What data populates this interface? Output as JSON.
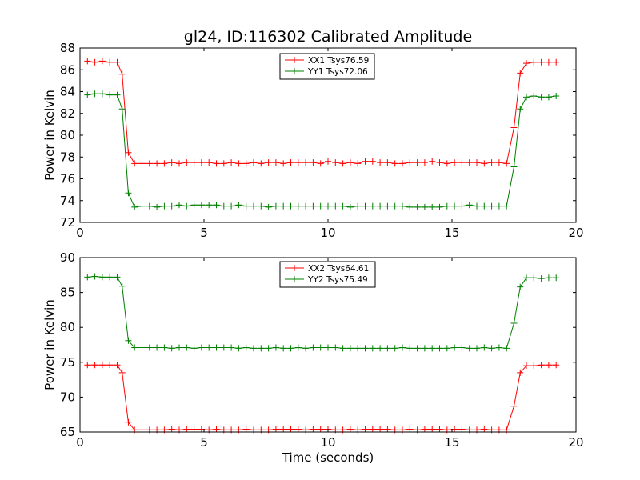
{
  "figure": {
    "title": "gl24, ID:116302 Calibrated Amplitude",
    "background": "#ffffff"
  },
  "chart_data": [
    {
      "type": "line",
      "title": "gl24, ID:116302 Calibrated Amplitude",
      "xlabel": "",
      "ylabel": "Power in Kelvin",
      "xlim": [
        0,
        20
      ],
      "ylim": [
        72,
        88
      ],
      "xticks": [
        0,
        5,
        10,
        15,
        20
      ],
      "yticks": [
        72,
        74,
        76,
        78,
        80,
        82,
        84,
        86,
        88
      ],
      "grid": false,
      "legend": "top-center",
      "x": [
        0.3,
        0.6,
        0.9,
        1.2,
        1.5,
        1.7,
        1.95,
        2.2,
        2.5,
        2.8,
        3.1,
        3.4,
        3.7,
        4.0,
        4.3,
        4.6,
        4.9,
        5.2,
        5.5,
        5.8,
        6.1,
        6.4,
        6.7,
        7.0,
        7.3,
        7.6,
        7.9,
        8.2,
        8.5,
        8.8,
        9.1,
        9.4,
        9.7,
        10.0,
        10.3,
        10.6,
        10.9,
        11.2,
        11.5,
        11.8,
        12.1,
        12.4,
        12.7,
        13.0,
        13.3,
        13.6,
        13.9,
        14.2,
        14.5,
        14.8,
        15.1,
        15.4,
        15.7,
        16.0,
        16.3,
        16.6,
        16.9,
        17.2,
        17.5,
        17.75,
        18.0,
        18.3,
        18.6,
        18.9,
        19.2
      ],
      "series": [
        {
          "name": "XX1 Tsys76.59",
          "color": "#ff0000",
          "values": [
            86.8,
            86.7,
            86.8,
            86.7,
            86.7,
            85.6,
            78.4,
            77.4,
            77.4,
            77.4,
            77.4,
            77.4,
            77.5,
            77.4,
            77.5,
            77.5,
            77.5,
            77.5,
            77.4,
            77.4,
            77.5,
            77.4,
            77.4,
            77.5,
            77.4,
            77.5,
            77.5,
            77.4,
            77.5,
            77.5,
            77.5,
            77.5,
            77.4,
            77.6,
            77.5,
            77.4,
            77.5,
            77.4,
            77.6,
            77.6,
            77.5,
            77.5,
            77.4,
            77.4,
            77.5,
            77.5,
            77.5,
            77.6,
            77.5,
            77.4,
            77.5,
            77.5,
            77.5,
            77.5,
            77.4,
            77.5,
            77.5,
            77.4,
            80.7,
            85.7,
            86.6,
            86.7,
            86.7,
            86.7,
            86.7
          ]
        },
        {
          "name": "YY1 Tsys72.06",
          "color": "#008000",
          "values": [
            83.7,
            83.8,
            83.8,
            83.7,
            83.7,
            82.4,
            74.7,
            73.4,
            73.5,
            73.5,
            73.4,
            73.5,
            73.5,
            73.6,
            73.5,
            73.6,
            73.6,
            73.6,
            73.6,
            73.5,
            73.5,
            73.6,
            73.5,
            73.5,
            73.5,
            73.4,
            73.5,
            73.5,
            73.5,
            73.5,
            73.5,
            73.5,
            73.5,
            73.5,
            73.5,
            73.5,
            73.4,
            73.5,
            73.5,
            73.5,
            73.5,
            73.5,
            73.5,
            73.5,
            73.4,
            73.4,
            73.4,
            73.4,
            73.4,
            73.5,
            73.5,
            73.5,
            73.6,
            73.5,
            73.5,
            73.5,
            73.5,
            73.5,
            77.1,
            82.4,
            83.5,
            83.6,
            83.5,
            83.5,
            83.6
          ]
        }
      ]
    },
    {
      "type": "line",
      "title": "",
      "xlabel": "Time (seconds)",
      "ylabel": "Power in Kelvin",
      "xlim": [
        0,
        20
      ],
      "ylim": [
        65,
        90
      ],
      "xticks": [
        0,
        5,
        10,
        15,
        20
      ],
      "yticks": [
        65,
        70,
        75,
        80,
        85,
        90
      ],
      "grid": false,
      "legend": "top-center",
      "x": [
        0.3,
        0.6,
        0.9,
        1.2,
        1.5,
        1.7,
        1.95,
        2.2,
        2.5,
        2.8,
        3.1,
        3.4,
        3.7,
        4.0,
        4.3,
        4.6,
        4.9,
        5.2,
        5.5,
        5.8,
        6.1,
        6.4,
        6.7,
        7.0,
        7.3,
        7.6,
        7.9,
        8.2,
        8.5,
        8.8,
        9.1,
        9.4,
        9.7,
        10.0,
        10.3,
        10.6,
        10.9,
        11.2,
        11.5,
        11.8,
        12.1,
        12.4,
        12.7,
        13.0,
        13.3,
        13.6,
        13.9,
        14.2,
        14.5,
        14.8,
        15.1,
        15.4,
        15.7,
        16.0,
        16.3,
        16.6,
        16.9,
        17.2,
        17.5,
        17.75,
        18.0,
        18.3,
        18.6,
        18.9,
        19.2
      ],
      "series": [
        {
          "name": "XX2 Tsys64.61",
          "color": "#ff0000",
          "values": [
            74.6,
            74.6,
            74.6,
            74.6,
            74.6,
            73.5,
            66.4,
            65.3,
            65.3,
            65.3,
            65.3,
            65.3,
            65.4,
            65.3,
            65.4,
            65.4,
            65.4,
            65.3,
            65.4,
            65.3,
            65.3,
            65.3,
            65.4,
            65.3,
            65.3,
            65.3,
            65.4,
            65.4,
            65.4,
            65.4,
            65.3,
            65.4,
            65.4,
            65.4,
            65.3,
            65.3,
            65.4,
            65.3,
            65.4,
            65.4,
            65.4,
            65.4,
            65.3,
            65.3,
            65.4,
            65.3,
            65.4,
            65.4,
            65.4,
            65.3,
            65.4,
            65.4,
            65.3,
            65.3,
            65.4,
            65.3,
            65.3,
            65.3,
            68.7,
            73.5,
            74.5,
            74.5,
            74.6,
            74.6,
            74.6
          ]
        },
        {
          "name": "YY2 Tsys75.49",
          "color": "#008000",
          "values": [
            87.2,
            87.3,
            87.2,
            87.2,
            87.2,
            85.9,
            78.1,
            77.1,
            77.1,
            77.1,
            77.1,
            77.1,
            77.0,
            77.1,
            77.1,
            77.0,
            77.1,
            77.1,
            77.1,
            77.1,
            77.1,
            77.0,
            77.1,
            77.0,
            77.0,
            77.0,
            77.1,
            77.0,
            77.0,
            77.1,
            77.0,
            77.1,
            77.1,
            77.1,
            77.1,
            77.0,
            77.0,
            77.0,
            77.0,
            77.0,
            77.0,
            77.0,
            77.0,
            77.1,
            77.0,
            77.0,
            77.0,
            77.0,
            77.0,
            77.0,
            77.1,
            77.1,
            77.0,
            77.0,
            77.1,
            77.0,
            77.1,
            77.0,
            80.6,
            85.8,
            87.1,
            87.1,
            87.0,
            87.1,
            87.1
          ]
        }
      ]
    }
  ]
}
